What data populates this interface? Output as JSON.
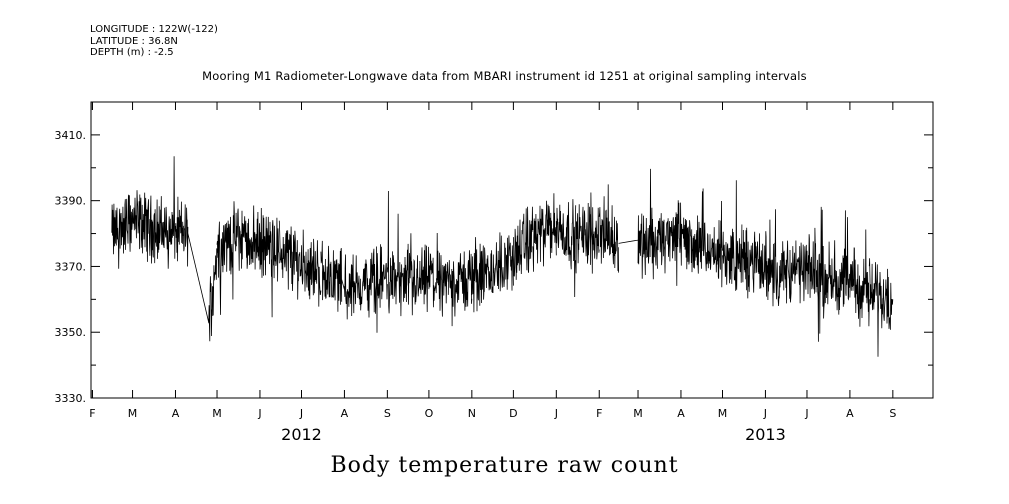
{
  "meta": {
    "longitude": "LONGITUDE : 122W(-122)",
    "latitude": "LATITUDE : 36.8N",
    "depth": "DEPTH (m) : -2.5"
  },
  "chart_data": {
    "type": "line",
    "title": "Mooring M1 Radiometer-Longwave data from MBARI instrument id 1251 at original sampling intervals",
    "xlabel": "Body temperature raw count",
    "ylabel": "",
    "ylim": [
      3330,
      3420
    ],
    "yticks": [
      "3330.",
      "3350.",
      "3370.",
      "3390.",
      "3410."
    ],
    "x_range": [
      "2012-01-31",
      "2013-09-30"
    ],
    "month_ticks": [
      "F",
      "M",
      "A",
      "M",
      "J",
      "J",
      "A",
      "S",
      "O",
      "N",
      "D",
      "J",
      "F",
      "M",
      "A",
      "M",
      "J",
      "J",
      "A",
      "S"
    ],
    "year_labels": [
      "2012",
      "2013"
    ],
    "grid": false,
    "series": [
      {
        "x": [
          "2012-02-15",
          "2012-03-01",
          "2012-03-20",
          "2012-04-10",
          "2012-04-25",
          "2012-05-01",
          "2012-05-15",
          "2012-06-01",
          "2012-06-15",
          "2012-07-01",
          "2012-07-15",
          "2012-07-30",
          "2012-08-01",
          "2012-09-01",
          "2012-09-15",
          "2012-10-01",
          "2012-10-15",
          "2012-11-01",
          "2012-11-15",
          "2012-12-01",
          "2012-12-15",
          "2013-01-01",
          "2013-01-15",
          "2013-02-01",
          "2013-02-15",
          "2013-03-01",
          "2013-03-15",
          "2013-04-01",
          "2013-04-15",
          "2013-05-01",
          "2013-05-15",
          "2013-06-01",
          "2013-06-15",
          "2013-07-01",
          "2013-07-15",
          "2013-08-01",
          "2013-08-15",
          "2013-09-01"
        ],
        "y": [
          3380,
          3384,
          3381,
          3380,
          3353,
          3376,
          3379,
          3377,
          3375,
          3371,
          3368,
          3366,
          3363,
          3367,
          3364,
          3366,
          3365,
          3366,
          3368,
          3373,
          3379,
          3382,
          3379,
          3381,
          3377,
          3378,
          3377,
          3380,
          3375,
          3373,
          3372,
          3370,
          3368,
          3369,
          3367,
          3365,
          3362,
          3361
        ],
        "gaps_after": [
          "2012-04-10",
          "2012-07-30",
          "2013-02-15"
        ]
      }
    ]
  }
}
